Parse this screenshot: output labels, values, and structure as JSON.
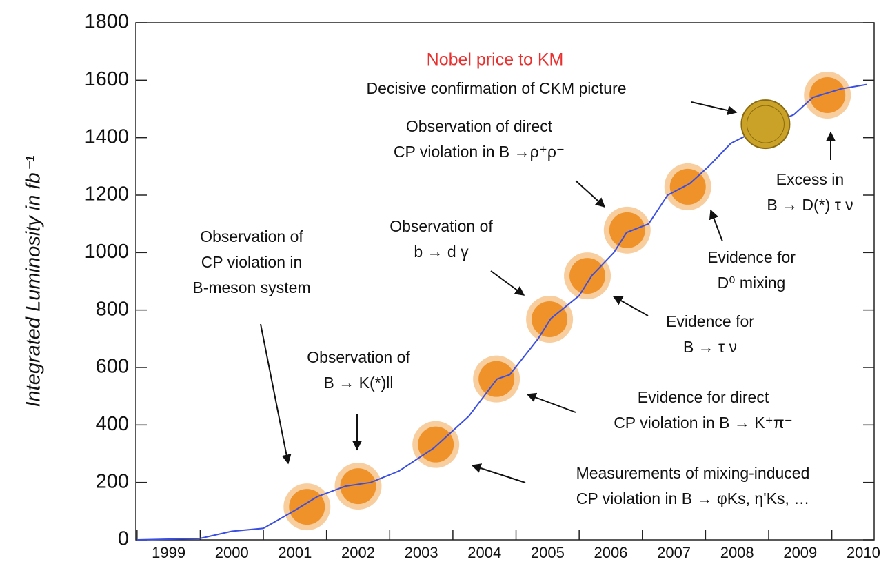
{
  "chart_data": {
    "type": "line",
    "y_label": "Integrated Luminosity in fb⁻¹",
    "title": "Nobel price to KM",
    "title_color": "#e8312f",
    "color": "#3a4fe0",
    "x": [
      1999.0,
      2000.0,
      2000.5,
      2001.0,
      2001.5,
      2001.85,
      2002.3,
      2002.7,
      2003.15,
      2003.7,
      2004.25,
      2004.7,
      2004.9,
      2005.35,
      2005.55,
      2006.0,
      2006.2,
      2006.55,
      2006.75,
      2007.1,
      2007.4,
      2007.75,
      2008.05,
      2008.4,
      2008.85,
      2009.4,
      2009.7,
      2010.15,
      2010.55
    ],
    "values": [
      0,
      5,
      30,
      40,
      103,
      150,
      187,
      200,
      240,
      320,
      430,
      560,
      575,
      700,
      770,
      850,
      920,
      1000,
      1070,
      1100,
      1200,
      1240,
      1300,
      1380,
      1430,
      1480,
      1540,
      1570,
      1585
    ],
    "xlim": [
      1998.98,
      2010.67
    ],
    "ylim": [
      0,
      1800
    ],
    "yticks": [
      0,
      200,
      400,
      600,
      800,
      1000,
      1200,
      1400,
      1600,
      1800
    ],
    "xticks": [
      {
        "value": 1999.5,
        "label": "1999"
      },
      {
        "value": 2000.5,
        "label": "2000"
      },
      {
        "value": 2001.5,
        "label": "2001"
      },
      {
        "value": 2002.5,
        "label": "2002"
      },
      {
        "value": 2003.5,
        "label": "2003"
      },
      {
        "value": 2004.5,
        "label": "2004"
      },
      {
        "value": 2005.5,
        "label": "2005"
      },
      {
        "value": 2006.5,
        "label": "2006"
      },
      {
        "value": 2007.5,
        "label": "2007"
      },
      {
        "value": 2008.5,
        "label": "2008"
      },
      {
        "value": 2009.5,
        "label": "2009"
      },
      {
        "value": 2010.5,
        "label": "2010"
      }
    ],
    "highlights": {
      "color": "#f0922a",
      "x": [
        2001.69,
        2002.5,
        2003.73,
        2004.69,
        2005.53,
        2006.13,
        2006.76,
        2007.72,
        2009.93
      ],
      "values": [
        115,
        187,
        332,
        560,
        768,
        919,
        1078,
        1229,
        1548
      ]
    },
    "medal": {
      "color": "#c9a227",
      "x": 2008.95,
      "value": 1447
    },
    "annotations": [
      [
        "Decisive confirmation of CKM picture"
      ],
      [
        "Observation of direct",
        "CP violation in B →ρ⁺ρ⁻"
      ],
      [
        "Observation of",
        "CP violation in",
        "B-meson system"
      ],
      [
        "Observation of",
        "b → d γ"
      ],
      [
        "Observation of",
        "B → K(*)ll"
      ],
      [
        "Excess in",
        "B → D(*) τ ν"
      ],
      [
        "Evidence for",
        "D⁰ mixing"
      ],
      [
        "Evidence for",
        "B → τ ν"
      ],
      [
        "Evidence for direct",
        "CP violation in B → K⁺π⁻"
      ],
      [
        "Measurements of mixing-induced",
        "CP violation in B → φKs, η'Ks, …"
      ]
    ]
  }
}
